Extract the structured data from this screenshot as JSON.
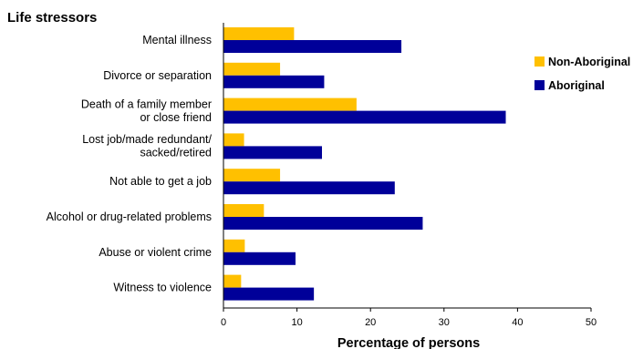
{
  "chart_data": {
    "type": "bar",
    "orientation": "horizontal",
    "title": "Life stressors",
    "xlabel": "Percentage of persons",
    "ylabel": "",
    "xlim": [
      0,
      50
    ],
    "xticks": [
      0,
      10,
      20,
      30,
      40,
      50
    ],
    "grid": false,
    "legend_position": "right",
    "categories": [
      [
        "Mental illness"
      ],
      [
        "Divorce or separation"
      ],
      [
        "Death of a family member",
        "or close friend"
      ],
      [
        "Lost job/made redundant/",
        "sacked/retired"
      ],
      [
        "Not able to get a job"
      ],
      [
        "Alcohol or drug-related problems"
      ],
      [
        "Abuse or violent crime"
      ],
      [
        "Witness to violence"
      ]
    ],
    "series": [
      {
        "name": "Non-Aboriginal",
        "color": "#FFC000",
        "values": [
          9.6,
          7.7,
          18.1,
          2.8,
          7.7,
          5.5,
          2.9,
          2.4
        ]
      },
      {
        "name": "Aboriginal",
        "color": "#000099",
        "values": [
          24.2,
          13.7,
          38.4,
          13.4,
          23.3,
          27.1,
          9.8,
          12.3
        ]
      }
    ]
  }
}
